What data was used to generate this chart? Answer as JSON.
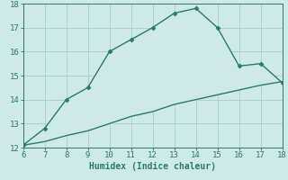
{
  "xlabel": "Humidex (Indice chaleur)",
  "x_upper": [
    6,
    7,
    8,
    9,
    10,
    11,
    12,
    13,
    14,
    15,
    16,
    17,
    18
  ],
  "y_upper": [
    12.1,
    12.8,
    14.0,
    14.5,
    16.0,
    16.5,
    17.0,
    17.6,
    17.8,
    17.0,
    15.4,
    15.5,
    14.7
  ],
  "x_lower": [
    6,
    7,
    8,
    9,
    10,
    11,
    12,
    13,
    14,
    15,
    16,
    17,
    18
  ],
  "y_lower": [
    12.1,
    12.25,
    12.5,
    12.7,
    13.0,
    13.3,
    13.5,
    13.8,
    14.0,
    14.2,
    14.4,
    14.6,
    14.75
  ],
  "line_color": "#2a7a6e",
  "bg_color": "#cdeae6",
  "grid_color": "#aaccc8",
  "xlim": [
    6,
    18
  ],
  "ylim": [
    12,
    18
  ],
  "xticks": [
    6,
    7,
    8,
    9,
    10,
    11,
    12,
    13,
    14,
    15,
    16,
    17,
    18
  ],
  "yticks": [
    12,
    13,
    14,
    15,
    16,
    17,
    18
  ],
  "xlabel_fontsize": 7,
  "tick_fontsize": 6.5,
  "line_width": 1.0,
  "marker": "D",
  "marker_size": 2.5
}
